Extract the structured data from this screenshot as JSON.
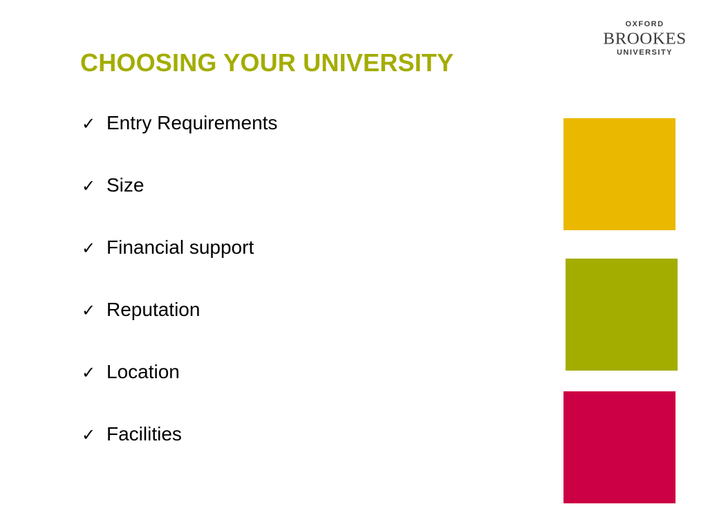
{
  "slide": {
    "title": "CHOOSING YOUR UNIVERSITY",
    "title_color": "#a3ad00",
    "check_icon": "✓",
    "bullets": [
      "Entry Requirements",
      "Size",
      "Financial support",
      "Reputation",
      "Location",
      "Facilities"
    ]
  },
  "logo": {
    "line1": "OXFORD",
    "line2": "BROOKES",
    "line3": "UNIVERSITY",
    "color": "#3c3c3c"
  },
  "squares": {
    "colors": [
      "#ebb800",
      "#a3ad00",
      "#cc0044"
    ]
  }
}
